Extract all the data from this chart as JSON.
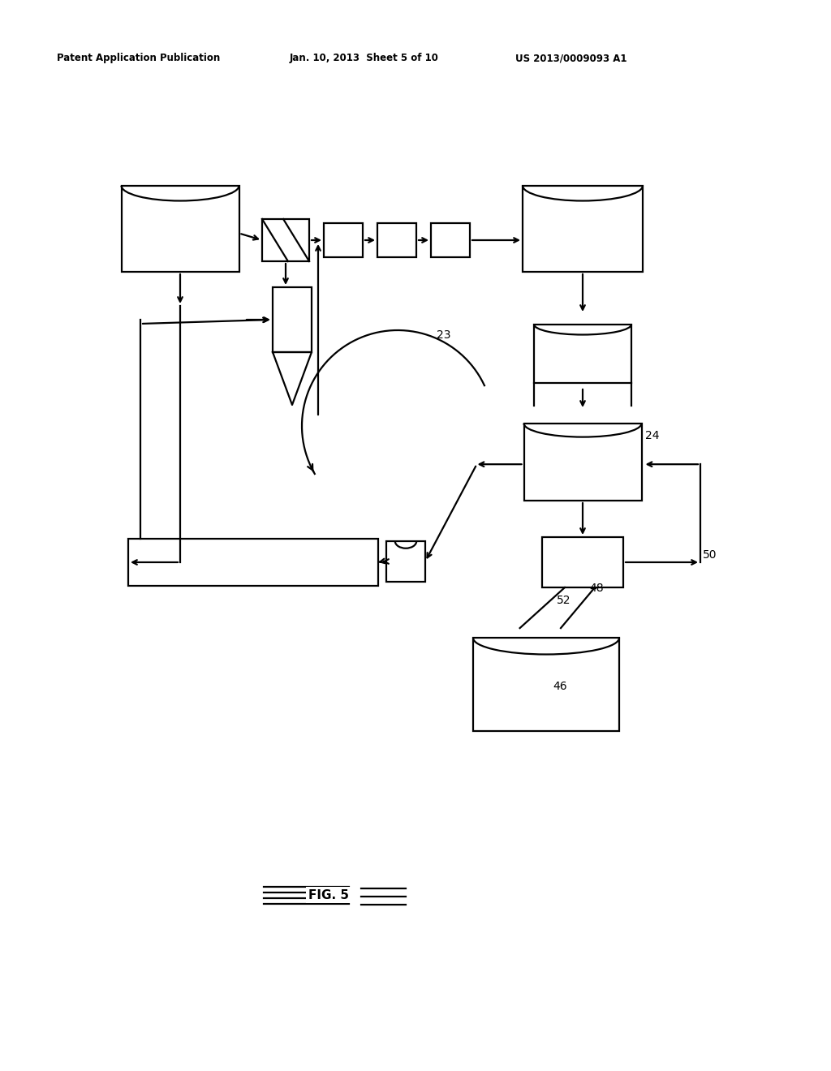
{
  "bg_color": "#ffffff",
  "header_left": "Patent Application Publication",
  "header_mid": "Jan. 10, 2013  Sheet 5 of 10",
  "header_right": "US 2013/0009093 A1",
  "label_23": "23",
  "label_24": "24",
  "label_46": "46",
  "label_48": "48",
  "label_50": "50",
  "label_52": "52",
  "lw": 1.6
}
